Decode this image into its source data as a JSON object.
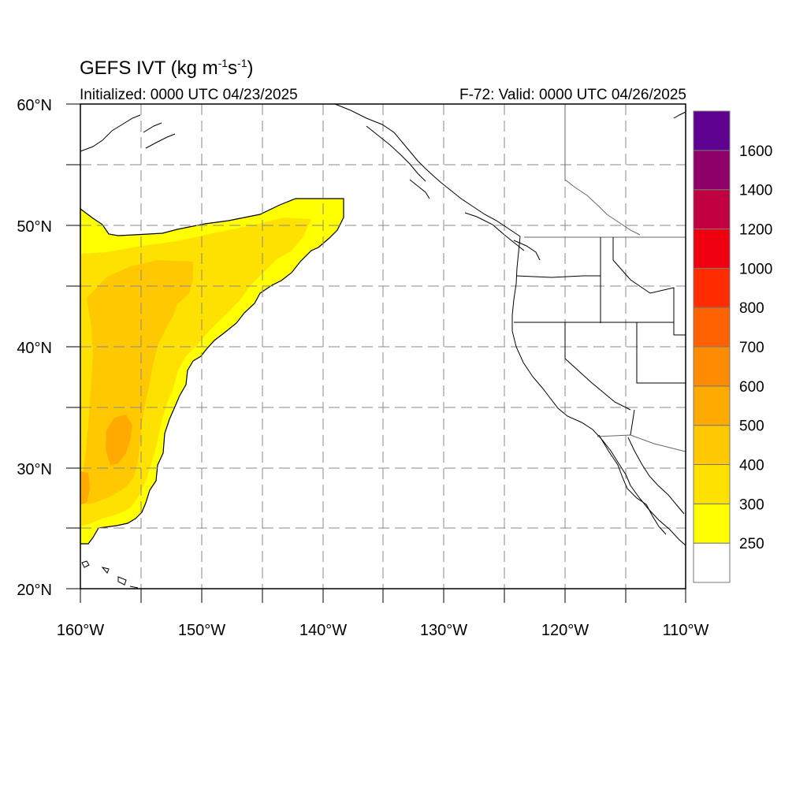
{
  "title": {
    "main": "GEFS IVT (kg m",
    "exp1": "-1",
    "mid": "s",
    "exp2": "-1",
    "close": ")"
  },
  "subtitle_left": "Initialized: 0000 UTC 04/23/2025",
  "subtitle_right": "F-72: Valid: 0000 UTC 04/26/2025",
  "map": {
    "projection": "cylindrical-equidistant",
    "lon_range": [
      -160,
      -110
    ],
    "lat_range": [
      20,
      60
    ],
    "grid": "dashed, every 5 degrees",
    "lat_labels": [
      "20°N",
      "30°N",
      "40°N",
      "50°N",
      "60°N"
    ],
    "lon_labels": [
      "160°W",
      "150°W",
      "140°W",
      "130°W",
      "120°W",
      "110°W"
    ],
    "ivt_plume": {
      "threshold": 250,
      "approx_extent": "25°N–52°N, 138°W–160°W",
      "peak_category": "500–600"
    }
  },
  "colorbar": {
    "levels": [
      "250",
      "300",
      "400",
      "500",
      "600",
      "700",
      "800",
      "1000",
      "1200",
      "1400",
      "1600"
    ],
    "colors": [
      "#ffffff",
      "#ffff00",
      "#ffe100",
      "#ffc800",
      "#ffaa00",
      "#ff8c00",
      "#ff6000",
      "#ff2c00",
      "#ee0010",
      "#c00040",
      "#8e0068",
      "#5e0090"
    ]
  }
}
